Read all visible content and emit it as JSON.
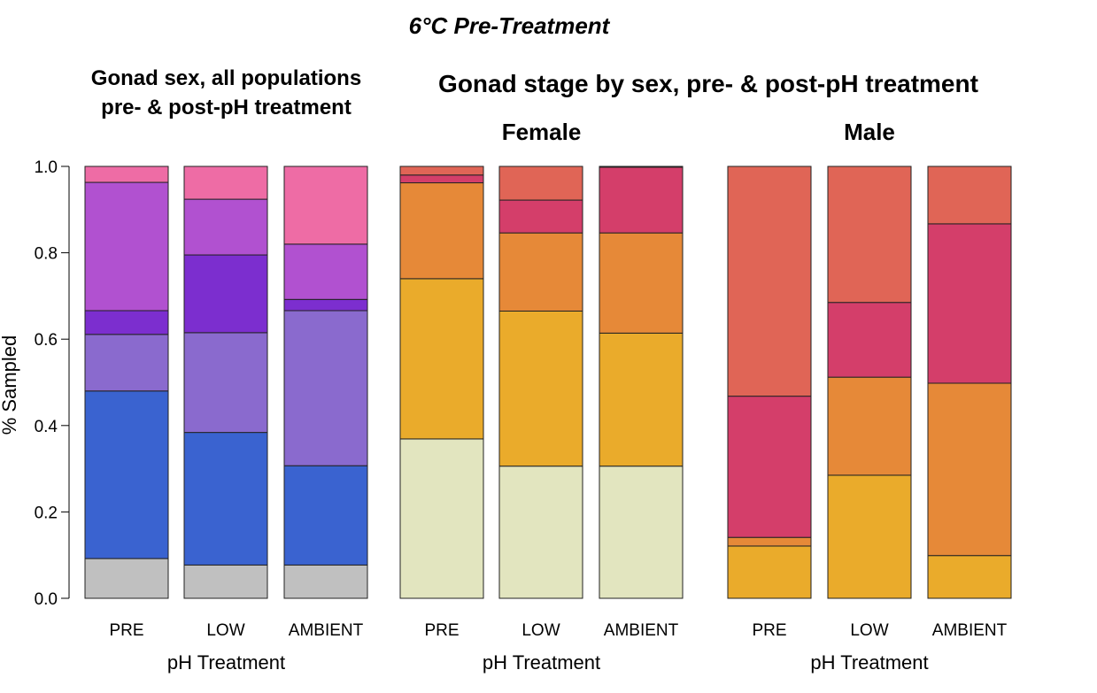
{
  "figure_title": "6°C Pre-Treatment",
  "chart_data": [
    {
      "type": "bar",
      "stacked": true,
      "title": "Gonad sex, all populations\npre- & post-pH treatment",
      "xlabel": "pH Treatment",
      "ylabel": "% Sampled",
      "ylim": [
        0,
        1
      ],
      "yticks": [
        "0.0",
        "0.2",
        "0.4",
        "0.6",
        "0.8",
        "1.0"
      ],
      "categories": [
        "PRE",
        "LOW",
        "AMBIENT"
      ],
      "series": [
        {
          "color": "#c0c0c0",
          "values": [
            0.092,
            0.077,
            0.077
          ]
        },
        {
          "color": "#3a63d0",
          "values": [
            0.388,
            0.307,
            0.23
          ]
        },
        {
          "color": "#8a6ace",
          "values": [
            0.131,
            0.231,
            0.359
          ]
        },
        {
          "color": "#7c2ecf",
          "values": [
            0.055,
            0.18,
            0.026
          ]
        },
        {
          "color": "#b151d0",
          "values": [
            0.297,
            0.129,
            0.128
          ]
        },
        {
          "color": "#ee6ca5",
          "values": [
            0.037,
            0.076,
            0.18
          ]
        }
      ]
    },
    {
      "type": "bar",
      "stacked": true,
      "group_title": "Gonad stage by sex, pre- & post-pH treatment",
      "title": "Female",
      "xlabel": "pH Treatment",
      "ylim": [
        0,
        1
      ],
      "categories": [
        "PRE",
        "LOW",
        "AMBIENT"
      ],
      "series": [
        {
          "color": "#e2e5bf",
          "values": [
            0.369,
            0.306,
            0.306
          ]
        },
        {
          "color": "#eaab2b",
          "values": [
            0.371,
            0.359,
            0.308
          ]
        },
        {
          "color": "#e68938",
          "values": [
            0.222,
            0.181,
            0.232
          ]
        },
        {
          "color": "#d43e6a",
          "values": [
            0.018,
            0.076,
            0.152
          ]
        },
        {
          "color": "#e06556",
          "values": [
            0.02,
            0.078,
            0.002
          ]
        }
      ]
    },
    {
      "type": "bar",
      "stacked": true,
      "title": "Male",
      "xlabel": "pH Treatment",
      "ylim": [
        0,
        1
      ],
      "categories": [
        "PRE",
        "LOW",
        "AMBIENT"
      ],
      "series": [
        {
          "color": "#e2e5bf",
          "values": [
            0,
            0,
            0
          ]
        },
        {
          "color": "#eaab2b",
          "values": [
            0.121,
            0.285,
            0.099
          ]
        },
        {
          "color": "#e68938",
          "values": [
            0.02,
            0.227,
            0.399
          ]
        },
        {
          "color": "#d43e6a",
          "values": [
            0.327,
            0.173,
            0.369
          ]
        },
        {
          "color": "#e06556",
          "values": [
            0.532,
            0.315,
            0.133
          ]
        }
      ]
    }
  ]
}
